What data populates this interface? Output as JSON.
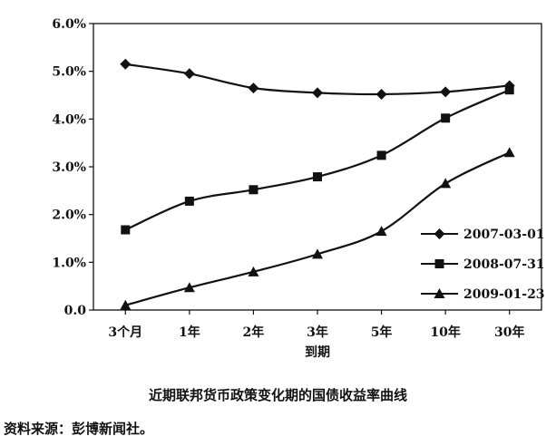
{
  "chart_data": {
    "type": "line",
    "categories": [
      "3个月",
      "1年",
      "2年",
      "3年",
      "5年",
      "10年",
      "30年"
    ],
    "series": [
      {
        "name": "2007-03-01",
        "marker": "diamond",
        "values": [
          5.15,
          4.95,
          4.65,
          4.55,
          4.52,
          4.57,
          4.7
        ]
      },
      {
        "name": "2008-07-31",
        "marker": "square",
        "values": [
          1.68,
          2.28,
          2.52,
          2.79,
          3.24,
          4.02,
          4.61
        ]
      },
      {
        "name": "2009-01-23",
        "marker": "triangle",
        "values": [
          0.1,
          0.47,
          0.8,
          1.17,
          1.65,
          2.65,
          3.3
        ]
      }
    ],
    "y_ticks": [
      "0.0",
      "1.0%",
      "2.0%",
      "3.0%",
      "4.0%",
      "5.0%",
      "6.0%"
    ],
    "ylim": [
      0,
      6
    ],
    "xlabel": "到期",
    "legend_position": "bottom-right",
    "grid": false,
    "line_color": "#111111"
  },
  "caption": "近期联邦货币政策变化期的国债收益率曲线",
  "source": "资料来源：彭博新闻社。"
}
